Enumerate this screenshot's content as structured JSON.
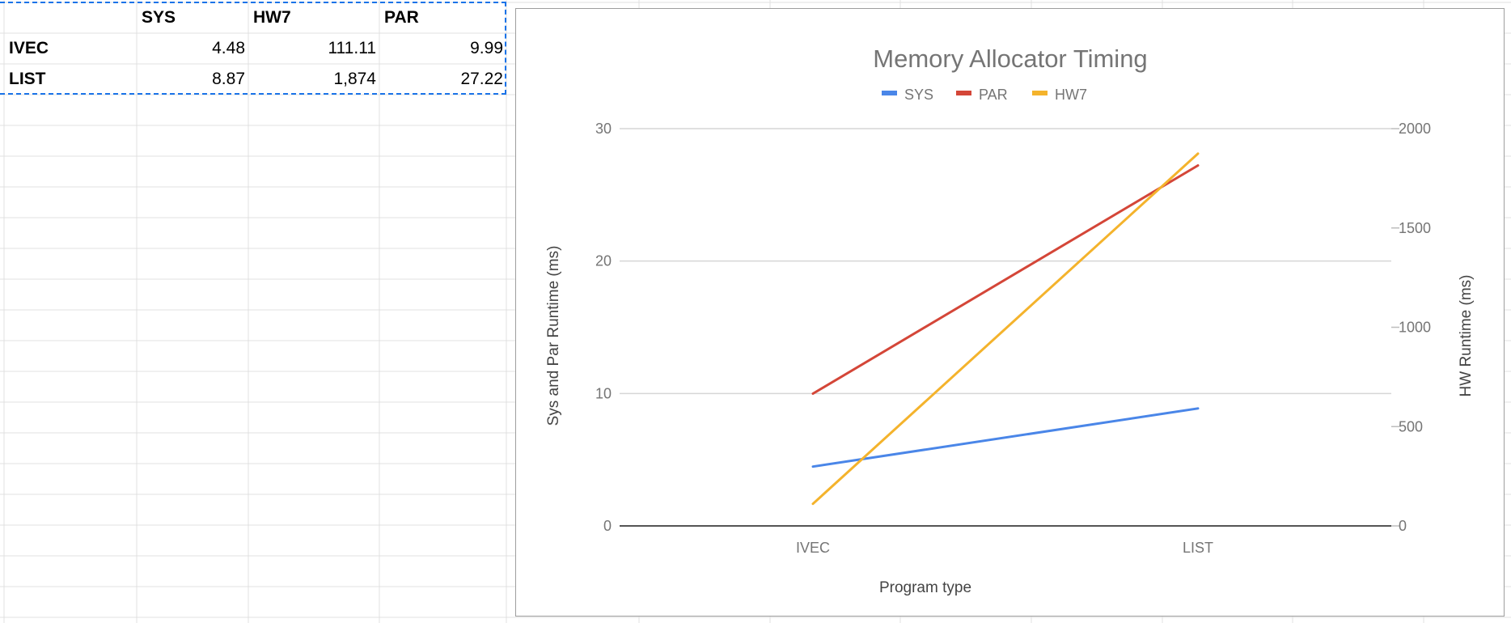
{
  "table": {
    "columns": [
      "SYS",
      "HW7",
      "PAR"
    ],
    "rows": [
      {
        "label": "IVEC",
        "values": [
          "4.48",
          "111.11",
          "9.99"
        ]
      },
      {
        "label": "LIST",
        "values": [
          "8.87",
          "1,874",
          "27.22"
        ]
      }
    ]
  },
  "chart_data": {
    "type": "line",
    "title": "Memory Allocator Timing",
    "categories": [
      "IVEC",
      "LIST"
    ],
    "xlabel": "Program type",
    "ylabel_left": "Sys and Par Runtime (ms)",
    "ylabel_right": "HW Runtime (ms)",
    "ylim_left": [
      0,
      30
    ],
    "ylim_right": [
      0,
      2000
    ],
    "left_ticks": [
      "0",
      "10",
      "20",
      "30"
    ],
    "right_ticks": [
      "0",
      "500",
      "1000",
      "1500",
      "2000"
    ],
    "legend": [
      "SYS",
      "PAR",
      "HW7"
    ],
    "legend_position": "top",
    "grid": true,
    "series": [
      {
        "name": "SYS",
        "axis": "left",
        "color": "#4a86e8",
        "values": [
          4.48,
          8.87
        ]
      },
      {
        "name": "PAR",
        "axis": "left",
        "color": "#d44638",
        "values": [
          9.99,
          27.22
        ]
      },
      {
        "name": "HW7",
        "axis": "right",
        "color": "#f4b32c",
        "values": [
          111.11,
          1874
        ]
      }
    ]
  }
}
